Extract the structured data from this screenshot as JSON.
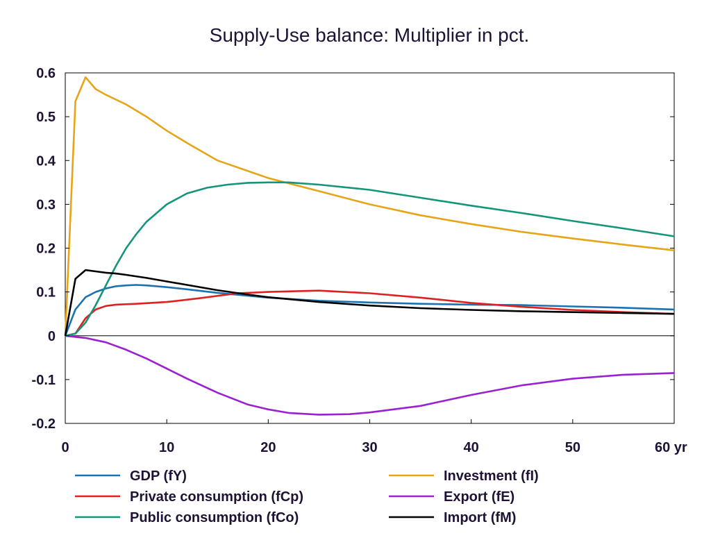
{
  "chart_data": {
    "type": "line",
    "title": "Supply-Use balance: Multiplier in pct.",
    "x_unit_label": "yr",
    "xlim": [
      0,
      60
    ],
    "ylim": [
      -0.2,
      0.6
    ],
    "x_ticks": [
      0,
      10,
      20,
      30,
      40,
      50,
      60
    ],
    "x_tick_labels": [
      "0",
      "10",
      "20",
      "30",
      "40",
      "50",
      "60 yr"
    ],
    "y_ticks": [
      0.6,
      0.5,
      0.4,
      0.3,
      0.2,
      0.1,
      0,
      -0.1,
      -0.2
    ],
    "y_tick_labels": [
      "0.6",
      "0.5",
      "0.4",
      "0.3",
      "0.2",
      "0.1",
      "0",
      "-0.1",
      "-0.2"
    ],
    "grid": false,
    "legend_position": "bottom",
    "series": [
      {
        "name": "GDP (fY)",
        "color": "#1a73b0",
        "x": [
          0,
          1,
          2,
          3,
          4,
          5,
          6,
          7,
          8,
          10,
          12,
          15,
          20,
          25,
          30,
          35,
          40,
          45,
          50,
          55,
          60
        ],
        "y": [
          0,
          0.06,
          0.088,
          0.1,
          0.108,
          0.113,
          0.115,
          0.116,
          0.115,
          0.111,
          0.106,
          0.098,
          0.087,
          0.08,
          0.076,
          0.073,
          0.071,
          0.07,
          0.067,
          0.064,
          0.06
        ]
      },
      {
        "name": "Investment (fI)",
        "color": "#e6a417",
        "x": [
          0,
          1,
          2,
          3,
          4,
          6,
          8,
          10,
          12,
          15,
          20,
          25,
          30,
          35,
          40,
          45,
          50,
          55,
          60
        ],
        "y": [
          0,
          0.535,
          0.59,
          0.563,
          0.55,
          0.528,
          0.5,
          0.468,
          0.44,
          0.4,
          0.36,
          0.33,
          0.3,
          0.275,
          0.255,
          0.237,
          0.222,
          0.208,
          0.195
        ]
      },
      {
        "name": "Private consumption (fCp)",
        "color": "#e02020",
        "x": [
          0,
          1,
          2,
          3,
          4,
          5,
          7,
          10,
          13,
          17,
          20,
          25,
          30,
          35,
          40,
          45,
          50,
          55,
          60
        ],
        "y": [
          0,
          0.005,
          0.04,
          0.06,
          0.068,
          0.071,
          0.073,
          0.077,
          0.085,
          0.097,
          0.1,
          0.103,
          0.097,
          0.087,
          0.075,
          0.066,
          0.059,
          0.054,
          0.05
        ]
      },
      {
        "name": "Export (fE)",
        "color": "#9a20d0",
        "x": [
          0,
          2,
          4,
          6,
          8,
          10,
          12,
          15,
          18,
          20,
          22,
          25,
          28,
          30,
          35,
          40,
          45,
          50,
          55,
          60
        ],
        "y": [
          0,
          -0.005,
          -0.015,
          -0.032,
          -0.052,
          -0.075,
          -0.098,
          -0.13,
          -0.157,
          -0.168,
          -0.176,
          -0.18,
          -0.179,
          -0.175,
          -0.16,
          -0.135,
          -0.113,
          -0.098,
          -0.089,
          -0.085
        ]
      },
      {
        "name": "Public consumption (fCo)",
        "color": "#13957a",
        "x": [
          0,
          1,
          2,
          3,
          4,
          5,
          6,
          7,
          8,
          10,
          12,
          14,
          16,
          18,
          20,
          22,
          25,
          30,
          35,
          40,
          45,
          50,
          55,
          60
        ],
        "y": [
          0,
          0.005,
          0.03,
          0.07,
          0.115,
          0.16,
          0.2,
          0.232,
          0.26,
          0.3,
          0.325,
          0.338,
          0.345,
          0.349,
          0.35,
          0.35,
          0.345,
          0.333,
          0.315,
          0.297,
          0.28,
          0.262,
          0.245,
          0.227
        ]
      },
      {
        "name": "Import (fM)",
        "color": "#000000",
        "x": [
          0,
          1,
          2,
          3,
          4,
          5,
          6,
          8,
          10,
          12,
          15,
          18,
          20,
          25,
          30,
          35,
          40,
          45,
          50,
          55,
          60
        ],
        "y": [
          0,
          0.13,
          0.15,
          0.147,
          0.144,
          0.142,
          0.139,
          0.132,
          0.124,
          0.116,
          0.104,
          0.094,
          0.088,
          0.077,
          0.069,
          0.063,
          0.059,
          0.056,
          0.054,
          0.052,
          0.05
        ]
      }
    ]
  }
}
